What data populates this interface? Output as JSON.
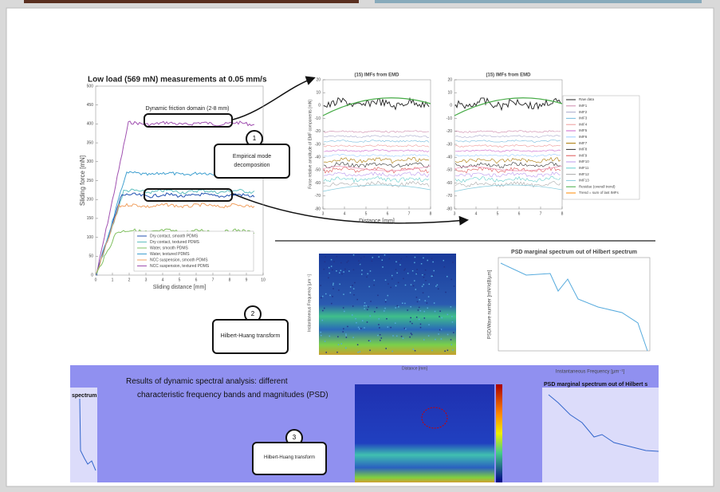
{
  "slide": {
    "heading": "Low load (569 mN) measurements at 0.05 mm/s",
    "domain_note": "Dynamic friction domain (2-8 mm)",
    "friction_chart": {
      "ylabel": "Sliding force [mN]",
      "xlabel": "Sliding distance [mm]",
      "yticks": [
        0,
        50,
        100,
        150,
        200,
        250,
        300,
        350,
        400,
        450,
        500
      ],
      "xticks": [
        0,
        1,
        2,
        3,
        4,
        5,
        6,
        7,
        8,
        9,
        10
      ],
      "legend": [
        "Dry contact, smooth PDMS",
        "Dry contact, textured PDMS",
        "Water, smooth PDMS",
        "Water, textured PDMS",
        "NCC suspension, smooth PDMS",
        "NCC suspension, textured PDMS"
      ]
    },
    "callouts": [
      {
        "number": "1",
        "text": "Empirical mode decomposition"
      },
      {
        "number": "2",
        "text": "Hilbert-Huang transform"
      },
      {
        "number": "3",
        "text": "Hilbert-Huang transform"
      }
    ],
    "emd_charts": [
      {
        "title": "(15) IMFs from EMD",
        "ylabel": "Force relative amplitude of EMF components [mN]",
        "xlabel": "Distance [mm]",
        "yticks": [
          20,
          10,
          0,
          -10,
          -20,
          -30,
          -40,
          -50,
          -60,
          -70,
          -80
        ],
        "xticks": [
          3,
          4,
          5,
          6,
          7,
          8
        ]
      },
      {
        "title": "(15) IMFs from EMD",
        "yticks": [
          20,
          10,
          0,
          -10,
          -20,
          -30,
          -40,
          -50,
          -60,
          -70,
          -80
        ],
        "xticks": [
          3,
          4,
          5,
          6,
          7,
          8
        ]
      }
    ],
    "emd_legend": [
      "Raw data",
      "IMF1",
      "IMF2",
      "IMF3",
      "IMF4",
      "IMF5",
      "IMF6",
      "IMF7",
      "IMF8",
      "IMF9",
      "IMF10",
      "IMF11",
      "IMF12",
      "IMF13",
      "Residue (overall trend)",
      "Trend = sum of last IMFs"
    ],
    "psd_chart": {
      "title": "PSD marginal spectrum out of Hilbert spectrum",
      "ylabel": "PSD/Wave number [mN²/dB/µm]",
      "xlabel": "Instantaneous Frequency [µm⁻¹]"
    },
    "spectrogram": {
      "ylabel": "Instantaneous Frequency [µm⁻¹]",
      "xlabel": "Distance [mm]"
    },
    "results": "Results of dynamic spectral analysis: different characteristic frequency bands and magnitudes (PSD)",
    "left_fragment": "spectrum",
    "right_fragment_title": "PSD marginal spectrum out of Hilbert s"
  }
}
